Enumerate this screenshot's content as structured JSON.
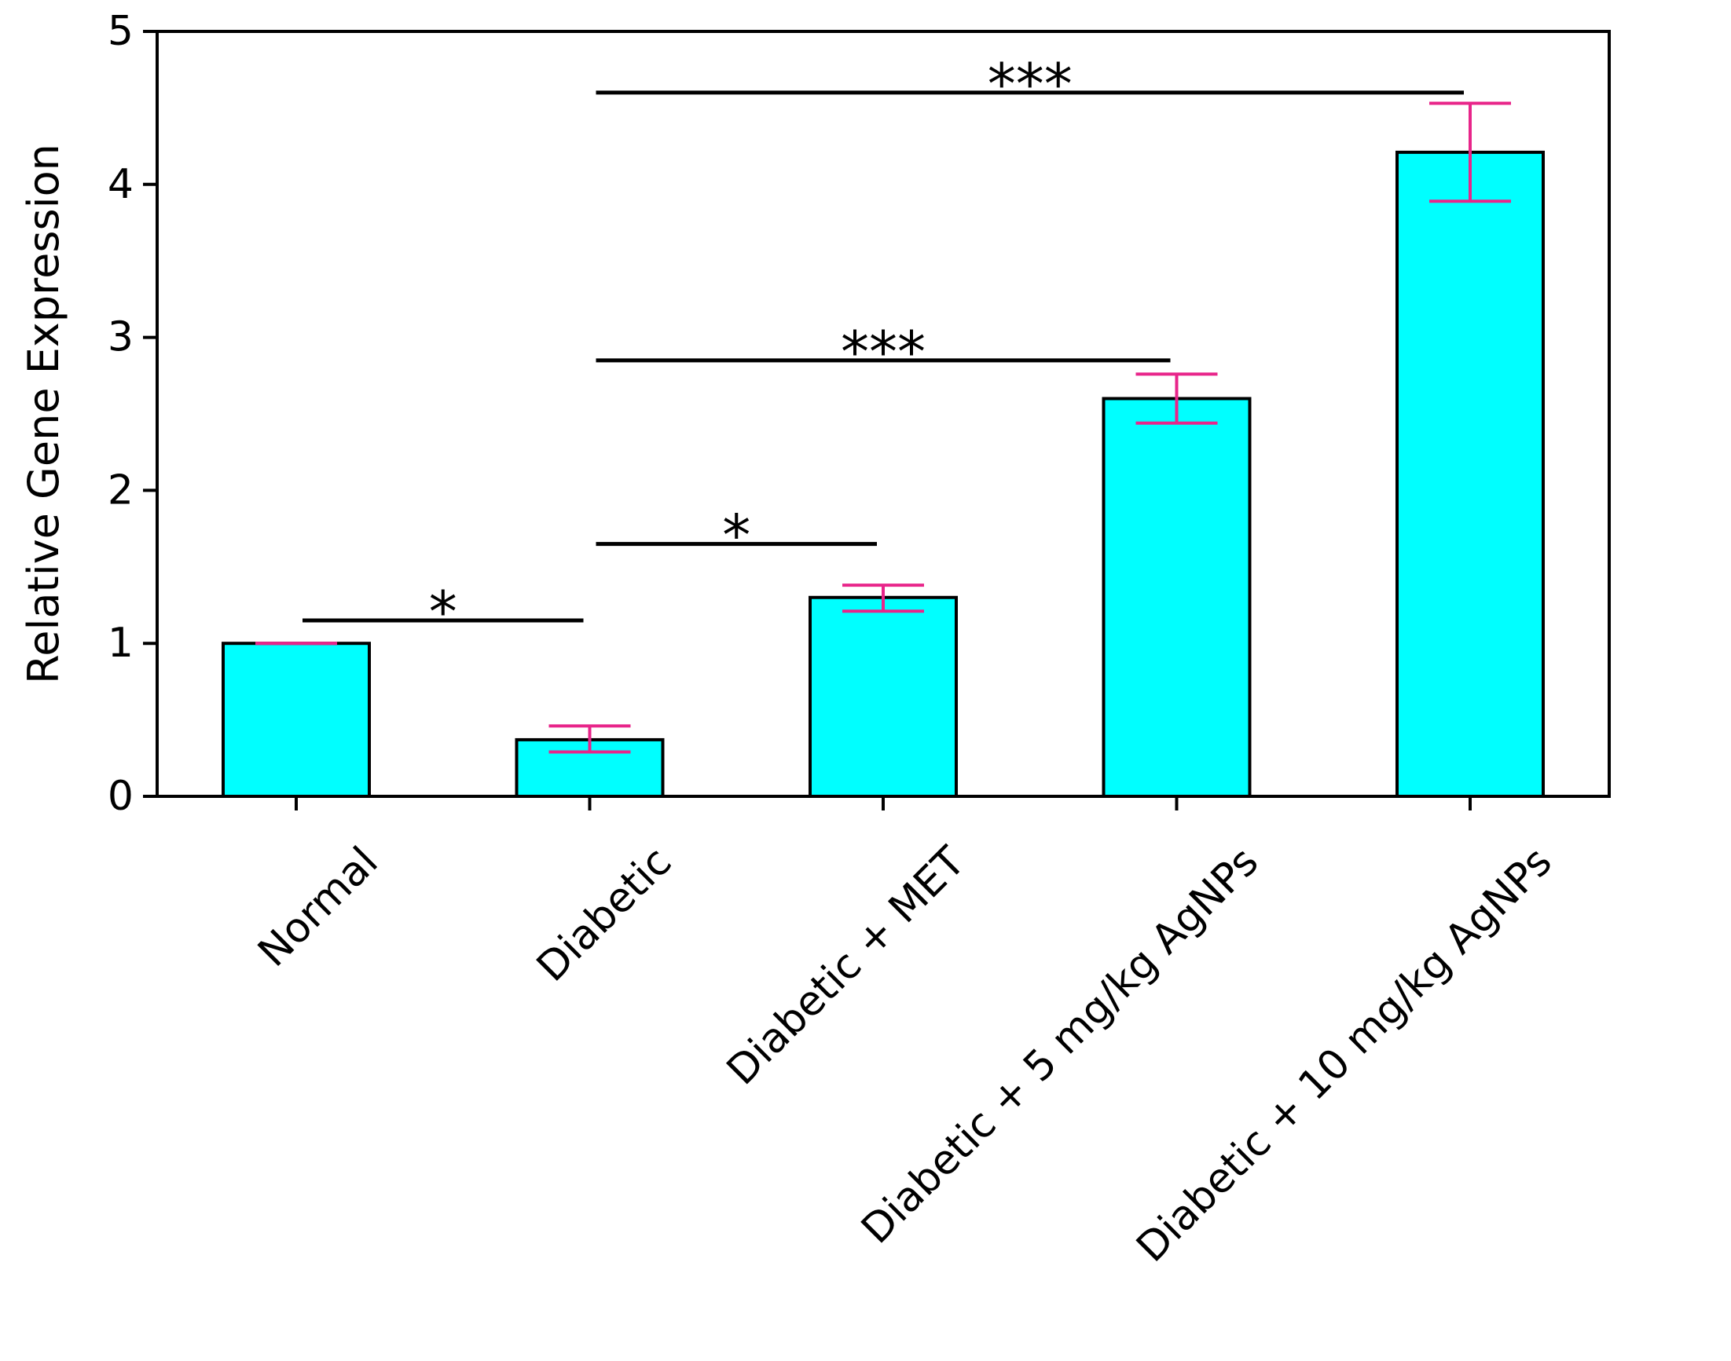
{
  "chart_data": {
    "type": "bar",
    "title": "",
    "xlabel": "",
    "ylabel": "Relative Gene Expression",
    "ylim": [
      0,
      5
    ],
    "yticks": [
      "0",
      "1",
      "2",
      "3",
      "4",
      "5"
    ],
    "grid": false,
    "categories": [
      "Normal",
      "Diabetic",
      "Diabetic + MET",
      "Diabetic + 5 mg/kg AgNPs",
      "Diabetic + 10 mg/kg AgNPs"
    ],
    "values": [
      1.0,
      0.37,
      1.3,
      2.6,
      4.21
    ],
    "error_low": [
      1.0,
      0.29,
      1.21,
      2.44,
      3.89
    ],
    "error_high": [
      1.0,
      0.46,
      1.38,
      2.76,
      4.53
    ],
    "bar_color": "#00FFFF",
    "bar_edge_color": "#000000",
    "error_color": "#E8258A",
    "significance": [
      {
        "from": 0,
        "to": 1,
        "y": 1.15,
        "label": "*"
      },
      {
        "from": 1,
        "to": 2,
        "y": 1.65,
        "label": "*"
      },
      {
        "from": 1,
        "to": 3,
        "y": 2.85,
        "label": "***"
      },
      {
        "from": 1,
        "to": 4,
        "y": 4.6,
        "label": "***"
      }
    ]
  }
}
